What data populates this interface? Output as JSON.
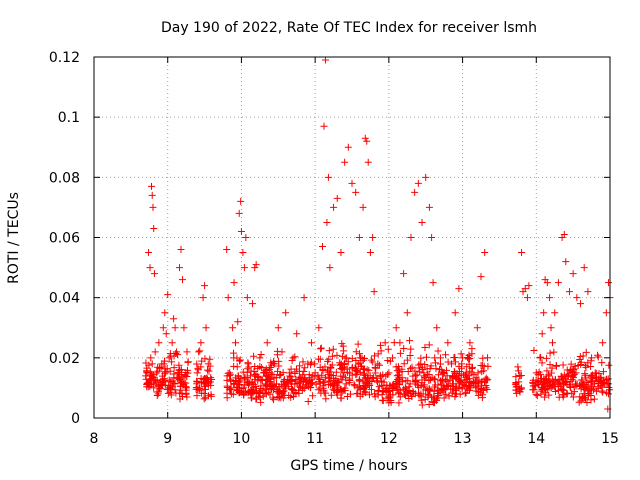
{
  "chart_data": {
    "type": "scatter",
    "title": "Day 190 of 2022, Rate Of TEC Index for receiver lsmh",
    "xlabel": "GPS time / hours",
    "ylabel": "ROTI / TECUs",
    "xlim": [
      8,
      15
    ],
    "ylim": [
      0,
      0.12
    ],
    "xticks": [
      "8",
      "9",
      "10",
      "11",
      "12",
      "13",
      "14",
      "15"
    ],
    "yticks": [
      "0",
      "0.02",
      "0.04",
      "0.06",
      "0.08",
      "0.1",
      "0.12"
    ],
    "grid": true,
    "marker": "+",
    "colors": {
      "series": "#ff0000",
      "grid": "#a0a0a0",
      "axis": "#000000"
    },
    "series": [
      {
        "points": [
          [
            8.72,
            0.015
          ],
          [
            8.74,
            0.055
          ],
          [
            8.76,
            0.05
          ],
          [
            8.78,
            0.077
          ],
          [
            8.79,
            0.074
          ],
          [
            8.8,
            0.07
          ],
          [
            8.81,
            0.063
          ],
          [
            8.82,
            0.048
          ],
          [
            8.75,
            0.012
          ],
          [
            8.77,
            0.02
          ],
          [
            8.79,
            0.018
          ],
          [
            8.81,
            0.01
          ],
          [
            8.83,
            0.022
          ],
          [
            8.85,
            0.015
          ],
          [
            8.87,
            0.008
          ],
          [
            8.88,
            0.025
          ],
          [
            8.9,
            0.012
          ],
          [
            8.92,
            0.018
          ],
          [
            8.94,
            0.03
          ],
          [
            8.96,
            0.035
          ],
          [
            8.98,
            0.028
          ],
          [
            9.0,
            0.041
          ],
          [
            9.02,
            0.02
          ],
          [
            9.04,
            0.012
          ],
          [
            9.06,
            0.025
          ],
          [
            9.08,
            0.033
          ],
          [
            9.1,
            0.03
          ],
          [
            9.12,
            0.022
          ],
          [
            9.14,
            0.015
          ],
          [
            9.16,
            0.05
          ],
          [
            9.18,
            0.056
          ],
          [
            9.2,
            0.046
          ],
          [
            9.22,
            0.03
          ],
          [
            9.24,
            0.01
          ],
          [
            9.26,
            0.007
          ],
          [
            9.4,
            0.015
          ],
          [
            9.42,
            0.022
          ],
          [
            9.45,
            0.025
          ],
          [
            9.48,
            0.04
          ],
          [
            9.5,
            0.044
          ],
          [
            9.52,
            0.03
          ],
          [
            9.55,
            0.018
          ],
          [
            9.58,
            0.012
          ],
          [
            9.8,
            0.056
          ],
          [
            9.82,
            0.04
          ],
          [
            9.84,
            0.015
          ],
          [
            9.86,
            0.01
          ],
          [
            9.88,
            0.03
          ],
          [
            9.9,
            0.045
          ],
          [
            9.92,
            0.025
          ],
          [
            9.95,
            0.032
          ],
          [
            9.97,
            0.068
          ],
          [
            9.99,
            0.072
          ],
          [
            10.0,
            0.062
          ],
          [
            10.02,
            0.055
          ],
          [
            10.04,
            0.05
          ],
          [
            10.06,
            0.06
          ],
          [
            10.08,
            0.04
          ],
          [
            10.1,
            0.012
          ],
          [
            10.15,
            0.038
          ],
          [
            10.18,
            0.05
          ],
          [
            10.2,
            0.051
          ],
          [
            10.25,
            0.02
          ],
          [
            10.3,
            0.015
          ],
          [
            10.35,
            0.025
          ],
          [
            10.4,
            0.012
          ],
          [
            10.45,
            0.018
          ],
          [
            10.5,
            0.03
          ],
          [
            10.55,
            0.022
          ],
          [
            10.6,
            0.035
          ],
          [
            10.65,
            0.015
          ],
          [
            10.7,
            0.02
          ],
          [
            10.75,
            0.028
          ],
          [
            10.8,
            0.012
          ],
          [
            10.85,
            0.04
          ],
          [
            10.9,
            0.018
          ],
          [
            10.95,
            0.025
          ],
          [
            11.0,
            0.015
          ],
          [
            11.05,
            0.03
          ],
          [
            11.1,
            0.057
          ],
          [
            11.12,
            0.097
          ],
          [
            11.14,
            0.119
          ],
          [
            11.16,
            0.065
          ],
          [
            11.18,
            0.08
          ],
          [
            11.2,
            0.05
          ],
          [
            11.25,
            0.07
          ],
          [
            11.3,
            0.073
          ],
          [
            11.35,
            0.055
          ],
          [
            11.4,
            0.085
          ],
          [
            11.45,
            0.09
          ],
          [
            11.5,
            0.078
          ],
          [
            11.55,
            0.075
          ],
          [
            11.6,
            0.06
          ],
          [
            11.65,
            0.07
          ],
          [
            11.68,
            0.093
          ],
          [
            11.7,
            0.092
          ],
          [
            11.72,
            0.085
          ],
          [
            11.75,
            0.055
          ],
          [
            11.78,
            0.06
          ],
          [
            11.8,
            0.042
          ],
          [
            11.85,
            0.018
          ],
          [
            11.9,
            0.012
          ],
          [
            11.95,
            0.025
          ],
          [
            12.0,
            0.015
          ],
          [
            12.05,
            0.02
          ],
          [
            12.1,
            0.03
          ],
          [
            12.15,
            0.025
          ],
          [
            12.2,
            0.048
          ],
          [
            12.25,
            0.035
          ],
          [
            12.3,
            0.06
          ],
          [
            12.35,
            0.075
          ],
          [
            12.4,
            0.078
          ],
          [
            12.45,
            0.065
          ],
          [
            12.5,
            0.08
          ],
          [
            12.55,
            0.07
          ],
          [
            12.58,
            0.06
          ],
          [
            12.6,
            0.045
          ],
          [
            12.65,
            0.03
          ],
          [
            12.7,
            0.02
          ],
          [
            12.75,
            0.015
          ],
          [
            12.8,
            0.025
          ],
          [
            12.85,
            0.018
          ],
          [
            12.9,
            0.035
          ],
          [
            12.95,
            0.043
          ],
          [
            13.0,
            0.02
          ],
          [
            13.05,
            0.015
          ],
          [
            13.1,
            0.025
          ],
          [
            13.15,
            0.012
          ],
          [
            13.2,
            0.03
          ],
          [
            13.25,
            0.047
          ],
          [
            13.3,
            0.055
          ],
          [
            13.8,
            0.055
          ],
          [
            13.82,
            0.042
          ],
          [
            13.85,
            0.043
          ],
          [
            13.88,
            0.04
          ],
          [
            13.9,
            0.044
          ],
          [
            13.75,
            0.017
          ],
          [
            13.78,
            0.014
          ],
          [
            13.8,
            0.01
          ],
          [
            14.0,
            0.015
          ],
          [
            14.02,
            0.012
          ],
          [
            14.05,
            0.02
          ],
          [
            14.08,
            0.028
          ],
          [
            14.1,
            0.035
          ],
          [
            14.12,
            0.046
          ],
          [
            14.15,
            0.045
          ],
          [
            14.18,
            0.04
          ],
          [
            14.2,
            0.03
          ],
          [
            14.22,
            0.025
          ],
          [
            14.25,
            0.035
          ],
          [
            14.3,
            0.045
          ],
          [
            14.35,
            0.06
          ],
          [
            14.38,
            0.061
          ],
          [
            14.4,
            0.052
          ],
          [
            14.45,
            0.042
          ],
          [
            14.5,
            0.048
          ],
          [
            14.55,
            0.04
          ],
          [
            14.6,
            0.038
          ],
          [
            14.65,
            0.05
          ],
          [
            14.7,
            0.042
          ],
          [
            14.75,
            0.02
          ],
          [
            14.8,
            0.015
          ],
          [
            14.85,
            0.012
          ],
          [
            14.9,
            0.025
          ],
          [
            14.95,
            0.035
          ],
          [
            14.98,
            0.045
          ],
          [
            15.0,
            0.04
          ],
          [
            14.97,
            0.003
          ]
        ]
      }
    ]
  }
}
